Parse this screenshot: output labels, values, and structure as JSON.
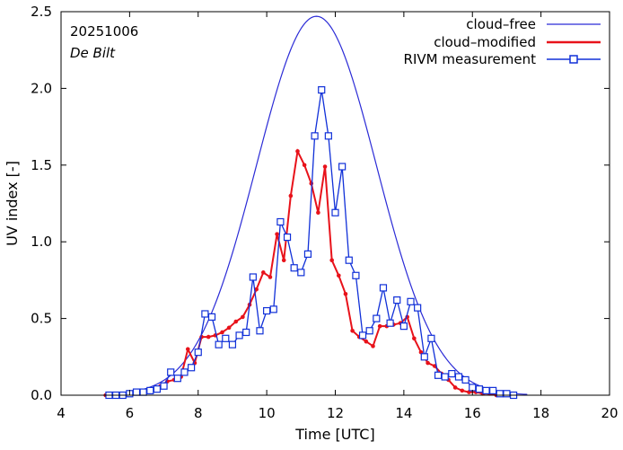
{
  "chart_data": {
    "type": "line",
    "xlabel": "Time  [UTC]",
    "ylabel": "UV index  [-]",
    "xlim": [
      4,
      20
    ],
    "ylim": [
      0,
      2.5
    ],
    "xticks": [
      "4",
      "6",
      "8",
      "10",
      "12",
      "14",
      "16",
      "18",
      "20"
    ],
    "yticks": [
      "0.0",
      "0.5",
      "1.0",
      "1.5",
      "2.0",
      "2.5"
    ],
    "annotations": {
      "date": "20251006",
      "station": "De Bilt"
    },
    "legend_position": "top-right",
    "colors": {
      "cloud_free": "#2b2bd6",
      "cloud_modified": "#e8121a",
      "rivm": "#1030d8"
    },
    "series": [
      {
        "name": "cloud–free",
        "style": "line",
        "peak": 2.47,
        "center": 11.45,
        "sigma": 1.75,
        "x_start": 5.3,
        "x_end": 17.6
      },
      {
        "name": "cloud–modified",
        "style": "line-dots",
        "x": [
          5.3,
          5.5,
          5.7,
          5.9,
          6.1,
          6.3,
          6.5,
          6.7,
          6.9,
          7.1,
          7.3,
          7.5,
          7.7,
          7.9,
          8.1,
          8.3,
          8.5,
          8.7,
          8.9,
          9.1,
          9.3,
          9.5,
          9.7,
          9.9,
          10.1,
          10.3,
          10.5,
          10.7,
          10.9,
          11.1,
          11.3,
          11.5,
          11.7,
          11.9,
          12.1,
          12.3,
          12.5,
          12.7,
          12.9,
          13.1,
          13.3,
          13.5,
          13.7,
          13.9,
          14.1,
          14.3,
          14.5,
          14.7,
          14.9,
          15.1,
          15.3,
          15.5,
          15.7,
          15.9,
          16.1,
          16.3,
          16.5,
          16.7,
          16.9,
          17.1
        ],
        "y": [
          0.0,
          0.0,
          0.0,
          0.01,
          0.02,
          0.02,
          0.03,
          0.04,
          0.06,
          0.09,
          0.1,
          0.12,
          0.3,
          0.21,
          0.38,
          0.38,
          0.39,
          0.41,
          0.44,
          0.48,
          0.51,
          0.59,
          0.69,
          0.8,
          0.77,
          1.05,
          0.88,
          1.3,
          1.59,
          1.5,
          1.38,
          1.19,
          1.49,
          0.88,
          0.78,
          0.66,
          0.42,
          0.38,
          0.35,
          0.32,
          0.45,
          0.45,
          0.46,
          0.47,
          0.51,
          0.37,
          0.28,
          0.21,
          0.19,
          0.14,
          0.1,
          0.05,
          0.03,
          0.02,
          0.02,
          0.01,
          0.01,
          0.0,
          0.0,
          0.0
        ]
      },
      {
        "name": "RIVM measurement",
        "style": "line-squares",
        "x": [
          5.4,
          5.6,
          5.8,
          6.0,
          6.2,
          6.4,
          6.6,
          6.8,
          7.0,
          7.2,
          7.4,
          7.6,
          7.8,
          8.0,
          8.2,
          8.4,
          8.6,
          8.8,
          9.0,
          9.2,
          9.4,
          9.6,
          9.8,
          10.0,
          10.2,
          10.4,
          10.6,
          10.8,
          11.0,
          11.2,
          11.4,
          11.6,
          11.8,
          12.0,
          12.2,
          12.4,
          12.6,
          12.8,
          13.0,
          13.2,
          13.4,
          13.6,
          13.8,
          14.0,
          14.2,
          14.4,
          14.6,
          14.8,
          15.0,
          15.2,
          15.4,
          15.6,
          15.8,
          16.0,
          16.2,
          16.4,
          16.6,
          16.8,
          17.0,
          17.2
        ],
        "y": [
          0.0,
          0.0,
          0.0,
          0.01,
          0.02,
          0.02,
          0.03,
          0.04,
          0.06,
          0.15,
          0.11,
          0.15,
          0.18,
          0.28,
          0.53,
          0.51,
          0.33,
          0.37,
          0.33,
          0.39,
          0.41,
          0.77,
          0.42,
          0.55,
          0.56,
          1.13,
          1.03,
          0.83,
          0.8,
          0.92,
          1.69,
          1.99,
          1.69,
          1.19,
          1.49,
          0.88,
          0.78,
          0.39,
          0.42,
          0.5,
          0.7,
          0.47,
          0.62,
          0.45,
          0.61,
          0.57,
          0.25,
          0.37,
          0.13,
          0.12,
          0.14,
          0.12,
          0.1,
          0.05,
          0.04,
          0.03,
          0.03,
          0.01,
          0.01,
          0.0
        ]
      }
    ]
  }
}
